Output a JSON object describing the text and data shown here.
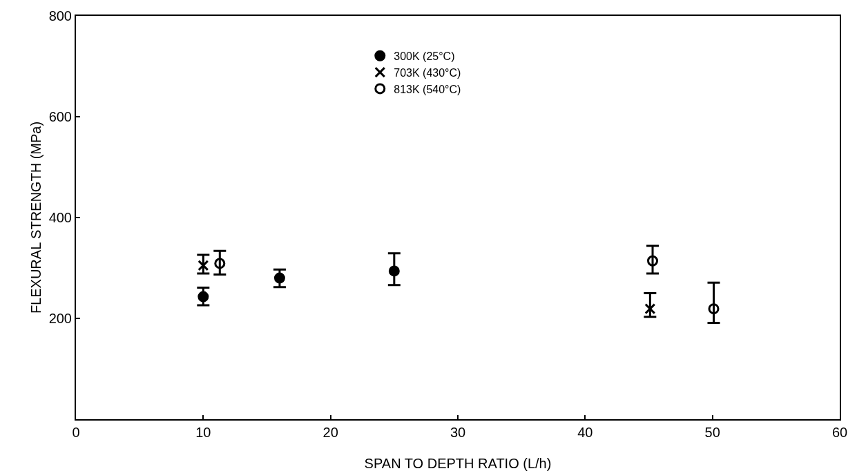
{
  "chart_data": {
    "type": "scatter",
    "xlabel": "SPAN TO DEPTH RATIO (L/h)",
    "ylabel": "FLEXURAL STRENGTH (MPa)",
    "xlim": [
      0,
      60
    ],
    "xticks": [
      0,
      10,
      20,
      30,
      40,
      50,
      60
    ],
    "ylim": [
      0,
      800
    ],
    "yticks": [
      200,
      400,
      600,
      800
    ],
    "grid": false,
    "legend": "top",
    "series": [
      {
        "name": "300K (25°C)",
        "color": "#000000",
        "marker": "circle",
        "x": [
          10,
          16,
          25
        ],
        "values": [
          243,
          280,
          294
        ],
        "errors": [
          [
            226,
            261
          ],
          [
            262,
            297
          ],
          [
            266,
            329
          ]
        ]
      },
      {
        "name": "703K (430°C)",
        "color": "#000000",
        "marker": "cross",
        "x": [
          10,
          45.1
        ],
        "values": [
          305,
          219
        ],
        "errors": [
          [
            289,
            326
          ],
          [
            203,
            250
          ]
        ]
      },
      {
        "name": "813K (540°C)",
        "color": "#000000",
        "marker": "circle-open",
        "x": [
          11.3,
          45.3,
          50.1
        ],
        "values": [
          309,
          314,
          219
        ],
        "errors": [
          [
            287,
            334
          ],
          [
            289,
            344
          ],
          [
            191,
            271
          ]
        ]
      }
    ]
  }
}
